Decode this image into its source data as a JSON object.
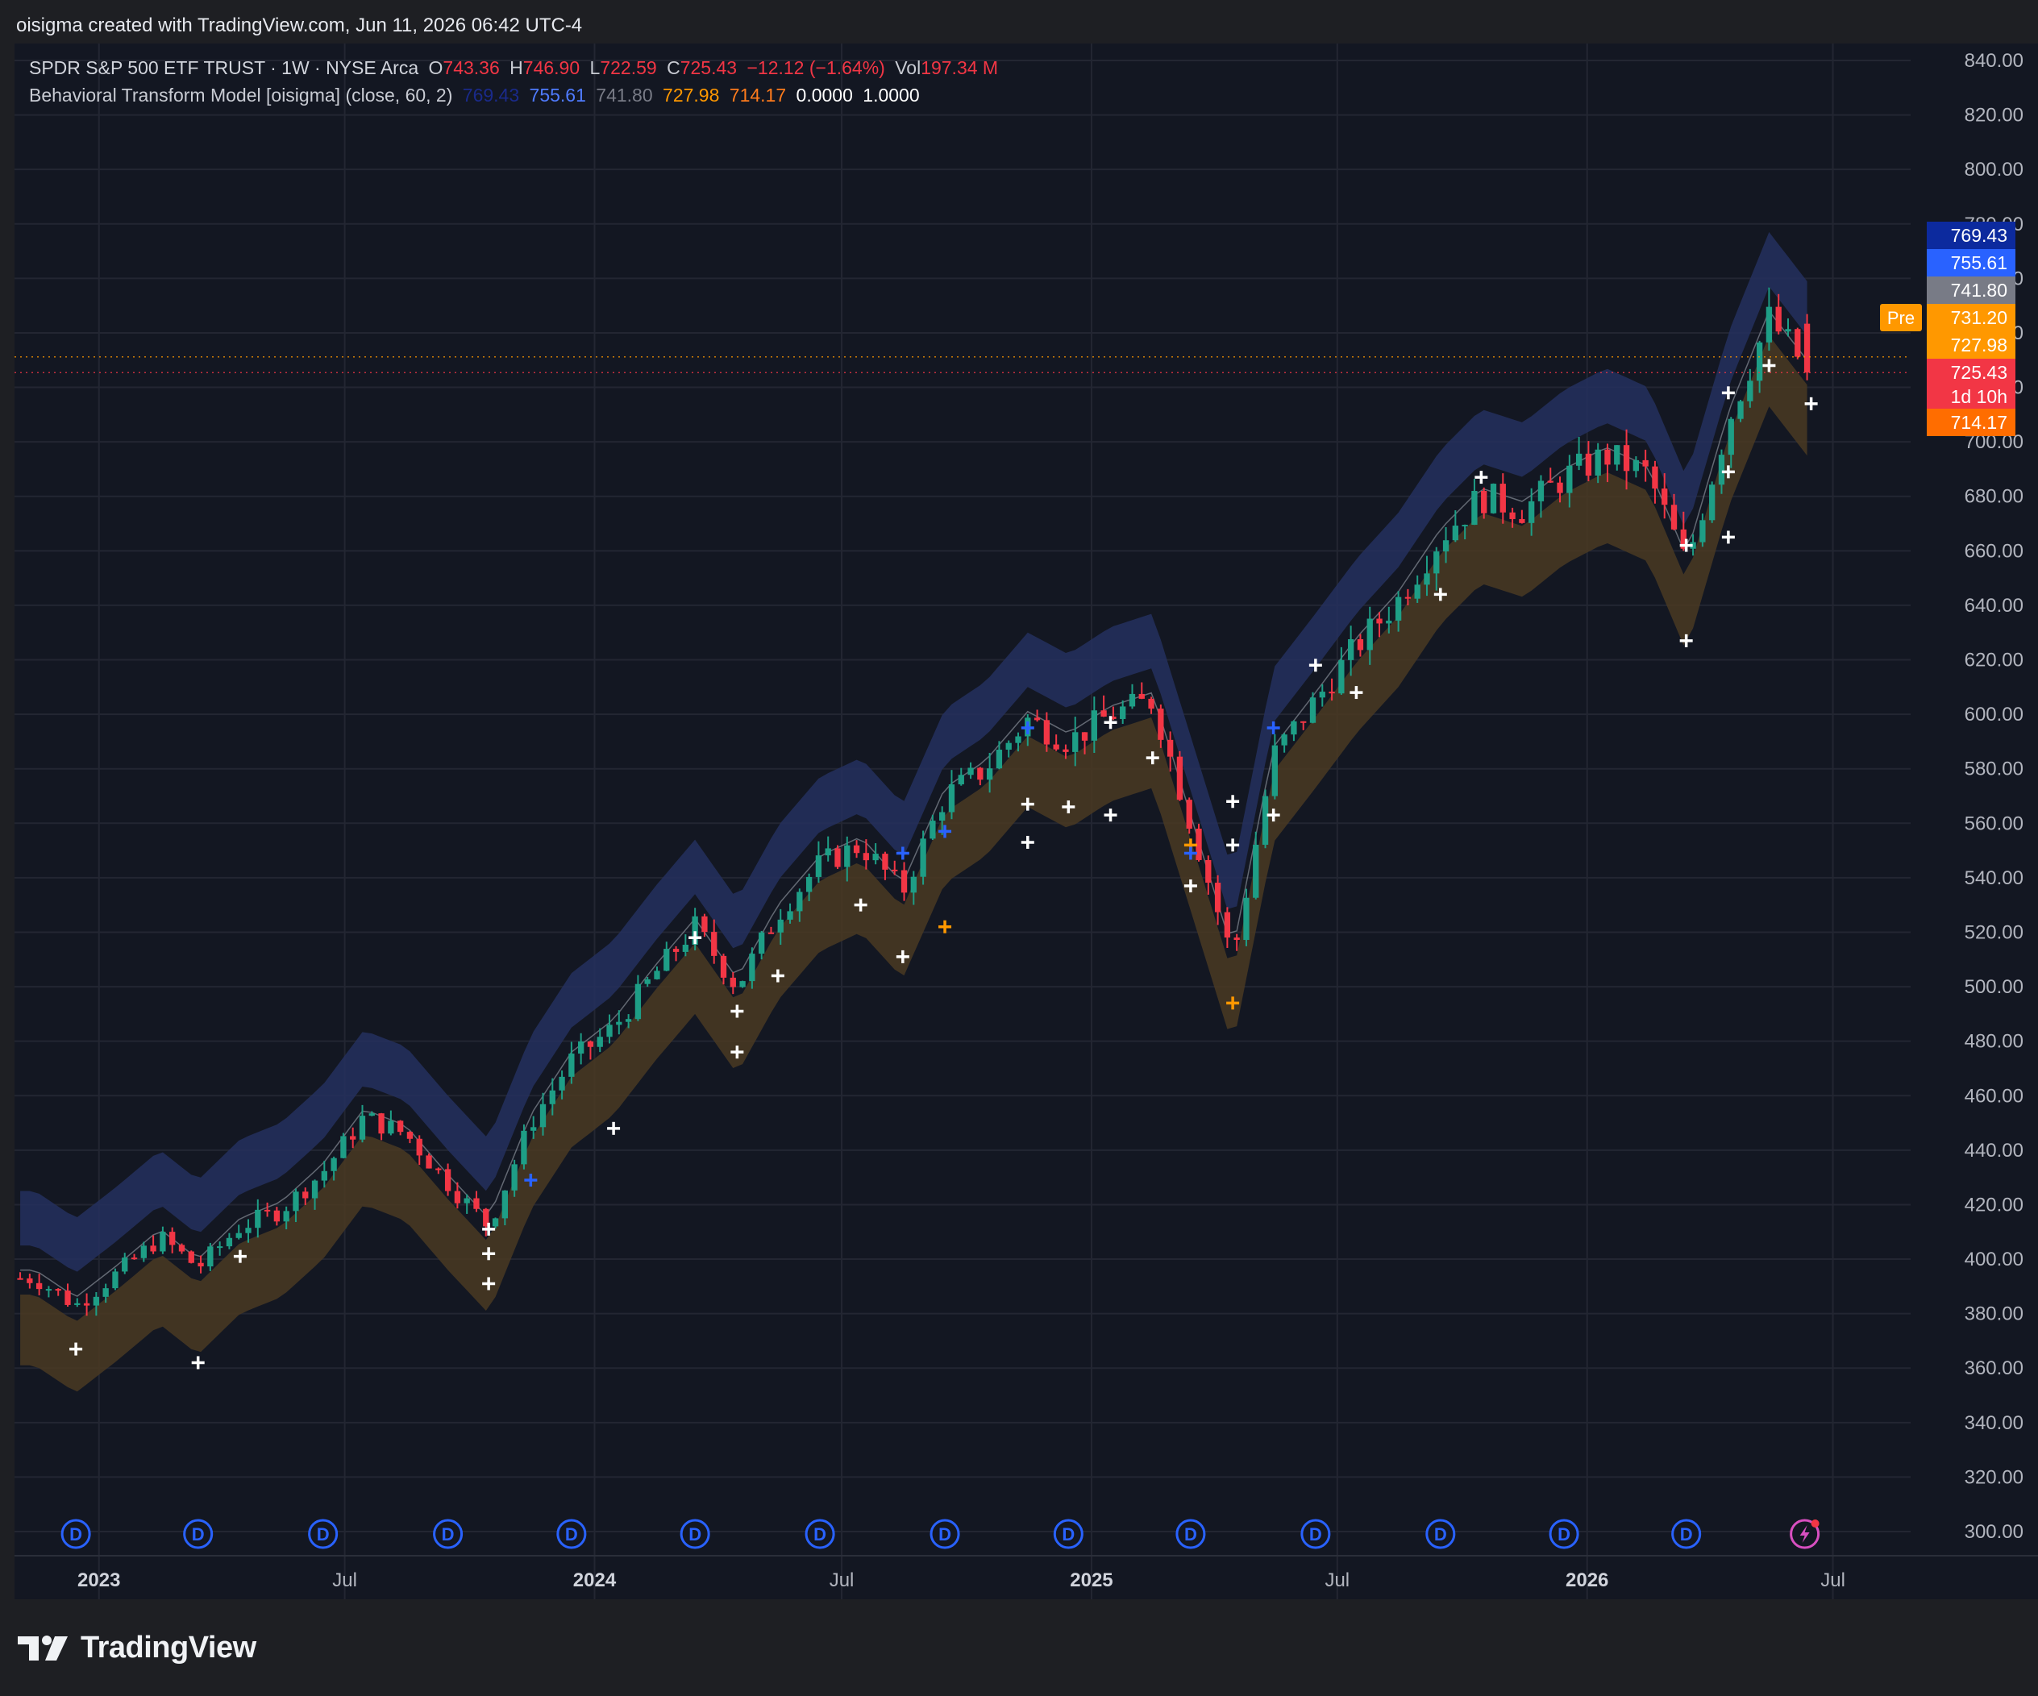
{
  "page": {
    "credit": "oisigma created with TradingView.com, Jun 11, 2026 06:42 UTC-4",
    "brand": "TradingView"
  },
  "legend": {
    "symbol": "SPDR S&P 500 ETF TRUST · 1W · NYSE Arca",
    "o_label": "O",
    "o": "743.36",
    "h_label": "H",
    "h": "746.90",
    "l_label": "L",
    "l": "722.59",
    "c_label": "C",
    "c": "725.43",
    "change": "−12.12 (−1.64%)",
    "vol_label": "Vol",
    "vol": "197.34 M",
    "indicator": "Behavioral Transform Model [oisigma] (close, 60, 2)",
    "v1": "769.43",
    "v2": "755.61",
    "v3": "741.80",
    "v4": "727.98",
    "v5": "714.17",
    "v6": "0.0000",
    "v7": "1.0000"
  },
  "colors": {
    "background": "#131722",
    "grid": "#232632",
    "up": "#1e9e86",
    "down": "#f23645",
    "upper_band": "#24305e",
    "lower_band": "#4a3a22",
    "white_marker": "#ffffff",
    "blue_marker": "#2962ff",
    "orange_marker": "#ff9800",
    "dividend": "#2962ff",
    "earnings_flash": "#d84fc0"
  },
  "price_labels": [
    {
      "text": "769.43",
      "value": 769.43,
      "color": "#0c2a9e"
    },
    {
      "text": "755.61",
      "value": 755.61,
      "color": "#2962ff"
    },
    {
      "text": "741.80",
      "value": 741.8,
      "color": "#787b86"
    },
    {
      "text": "731.20",
      "value": 731.2,
      "color": "#ff9800",
      "tag": "Pre"
    },
    {
      "text": "727.98",
      "value": 727.98,
      "color": "#ff9800"
    },
    {
      "text": "725.43",
      "value": 725.43,
      "color": "#f23645",
      "sub": "1d 10h"
    },
    {
      "text": "714.17",
      "value": 714.17,
      "color": "#ff6d00"
    }
  ],
  "chart_data": {
    "type": "candlestick",
    "title": "SPDR S&P 500 ETF TRUST · 1W · NYSE Arca",
    "ylim": [
      300,
      840
    ],
    "y_ticks": [
      "840.00",
      "820.00",
      "800.00",
      "780.00",
      "760.00",
      "740.00",
      "720.00",
      "700.00",
      "680.00",
      "660.00",
      "640.00",
      "620.00",
      "600.00",
      "580.00",
      "560.00",
      "540.00",
      "520.00",
      "500.00",
      "480.00",
      "460.00",
      "440.00",
      "420.00",
      "400.00",
      "380.00",
      "360.00",
      "340.00",
      "320.00",
      "300.00"
    ],
    "x_ticks": [
      {
        "label": "2023",
        "date": "2023-01",
        "bold": true
      },
      {
        "label": "Jul",
        "date": "2023-07"
      },
      {
        "label": "2024",
        "date": "2024-01",
        "bold": true
      },
      {
        "label": "Jul",
        "date": "2024-07"
      },
      {
        "label": "2025",
        "date": "2025-01",
        "bold": true
      },
      {
        "label": "Jul",
        "date": "2025-07"
      },
      {
        "label": "2026",
        "date": "2026-01",
        "bold": true
      },
      {
        "label": "Jul",
        "date": "2026-07"
      }
    ],
    "grid": true,
    "close_path": [
      [
        "2022-11",
        393
      ],
      [
        "2022-12",
        383
      ],
      [
        "2023-01",
        395
      ],
      [
        "2023-02",
        408
      ],
      [
        "2023-03",
        397
      ],
      [
        "2023-04",
        412
      ],
      [
        "2023-05",
        418
      ],
      [
        "2023-06",
        432
      ],
      [
        "2023-07",
        452
      ],
      [
        "2023-08",
        446
      ],
      [
        "2023-09",
        428
      ],
      [
        "2023-10",
        412
      ],
      [
        "2023-11",
        450
      ],
      [
        "2023-12",
        473
      ],
      [
        "2024-01",
        485
      ],
      [
        "2024-02",
        505
      ],
      [
        "2024-03",
        522
      ],
      [
        "2024-04",
        500
      ],
      [
        "2024-05",
        527
      ],
      [
        "2024-06",
        545
      ],
      [
        "2024-07",
        552
      ],
      [
        "2024-08",
        535
      ],
      [
        "2024-09",
        570
      ],
      [
        "2024-10",
        580
      ],
      [
        "2024-11",
        598
      ],
      [
        "2024-12",
        590
      ],
      [
        "2025-01",
        600
      ],
      [
        "2025-02",
        605
      ],
      [
        "2025-03",
        560
      ],
      [
        "2025-04",
        510
      ],
      [
        "2025-05",
        585
      ],
      [
        "2025-06",
        605
      ],
      [
        "2025-07",
        625
      ],
      [
        "2025-08",
        642
      ],
      [
        "2025-09",
        665
      ],
      [
        "2025-10",
        680
      ],
      [
        "2025-11",
        675
      ],
      [
        "2025-12",
        687
      ],
      [
        "2026-01",
        695
      ],
      [
        "2026-02",
        688
      ],
      [
        "2026-03",
        655
      ],
      [
        "2026-04",
        708
      ],
      [
        "2026-05",
        745
      ],
      [
        "2026-06",
        725
      ]
    ],
    "band_offsets": {
      "upper_outer": 32,
      "upper_inner": 12,
      "lower_inner": -6,
      "lower_outer": -32
    },
    "last": {
      "open": 743.36,
      "high": 746.9,
      "low": 722.59,
      "close": 725.43
    },
    "markers": [
      {
        "date": "2022-12",
        "value": 367,
        "color": "white"
      },
      {
        "date": "2023-03",
        "value": 362,
        "color": "white"
      },
      {
        "date": "2023-04",
        "value": 401,
        "color": "white"
      },
      {
        "date": "2023-10",
        "value": 411,
        "color": "white"
      },
      {
        "date": "2023-10",
        "value": 402,
        "color": "white"
      },
      {
        "date": "2023-10",
        "value": 391,
        "color": "white"
      },
      {
        "date": "2023-11",
        "value": 429,
        "color": "blue"
      },
      {
        "date": "2024-01",
        "value": 448,
        "color": "white"
      },
      {
        "date": "2024-03",
        "value": 518,
        "color": "white"
      },
      {
        "date": "2024-04",
        "value": 491,
        "color": "white"
      },
      {
        "date": "2024-04",
        "value": 476,
        "color": "white"
      },
      {
        "date": "2024-05",
        "value": 504,
        "color": "white"
      },
      {
        "date": "2024-07",
        "value": 530,
        "color": "white"
      },
      {
        "date": "2024-08",
        "value": 511,
        "color": "white"
      },
      {
        "date": "2024-08",
        "value": 549,
        "color": "blue"
      },
      {
        "date": "2024-09",
        "value": 522,
        "color": "orange"
      },
      {
        "date": "2024-09",
        "value": 557,
        "color": "blue"
      },
      {
        "date": "2024-11",
        "value": 553,
        "color": "white"
      },
      {
        "date": "2024-11",
        "value": 595,
        "color": "blue"
      },
      {
        "date": "2024-11",
        "value": 567,
        "color": "white"
      },
      {
        "date": "2024-12",
        "value": 566,
        "color": "white"
      },
      {
        "date": "2025-01",
        "value": 597,
        "color": "white"
      },
      {
        "date": "2025-01",
        "value": 563,
        "color": "white"
      },
      {
        "date": "2025-02",
        "value": 584,
        "color": "white"
      },
      {
        "date": "2025-03",
        "value": 552,
        "color": "orange"
      },
      {
        "date": "2025-03",
        "value": 537,
        "color": "white"
      },
      {
        "date": "2025-03",
        "value": 549,
        "color": "blue"
      },
      {
        "date": "2025-04",
        "value": 494,
        "color": "orange"
      },
      {
        "date": "2025-04",
        "value": 552,
        "color": "white"
      },
      {
        "date": "2025-04",
        "value": 568,
        "color": "white"
      },
      {
        "date": "2025-05",
        "value": 595,
        "color": "blue"
      },
      {
        "date": "2025-05",
        "value": 563,
        "color": "white"
      },
      {
        "date": "2025-06",
        "value": 618,
        "color": "white"
      },
      {
        "date": "2025-07",
        "value": 608,
        "color": "white"
      },
      {
        "date": "2025-09",
        "value": 644,
        "color": "white"
      },
      {
        "date": "2025-10",
        "value": 687,
        "color": "white"
      },
      {
        "date": "2026-03",
        "value": 662,
        "color": "white"
      },
      {
        "date": "2026-03",
        "value": 627,
        "color": "white"
      },
      {
        "date": "2026-04",
        "value": 665,
        "color": "white"
      },
      {
        "date": "2026-04",
        "value": 689,
        "color": "white"
      },
      {
        "date": "2026-04",
        "value": 718,
        "color": "white"
      },
      {
        "date": "2026-05",
        "value": 728,
        "color": "white"
      },
      {
        "date": "2026-06",
        "value": 714,
        "color": "white"
      }
    ],
    "dividend_dates": [
      "2022-12",
      "2023-03",
      "2023-06",
      "2023-09",
      "2023-12",
      "2024-03",
      "2024-06",
      "2024-09",
      "2024-12",
      "2025-03",
      "2025-06",
      "2025-09",
      "2025-12",
      "2026-03"
    ],
    "event_label": "D",
    "earnings_event_date": "2026-06"
  }
}
